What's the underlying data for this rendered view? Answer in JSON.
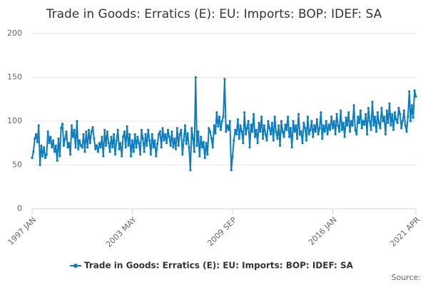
{
  "chart_data": {
    "type": "line",
    "title": "Trade in Goods: Erratics (E): EU: Imports: BOP: IDEF: SA",
    "source": "Source:",
    "categories": [
      "1997 JAN",
      null,
      null,
      null,
      null,
      null,
      null,
      null,
      null,
      null,
      null,
      null,
      null,
      null,
      null,
      null,
      null,
      null,
      null,
      null,
      null,
      null,
      null,
      null,
      null,
      null,
      null,
      null,
      null,
      null,
      null,
      null,
      null,
      null,
      null,
      null,
      null,
      null,
      null,
      null,
      null,
      null,
      null,
      null,
      null,
      null,
      null,
      null,
      null,
      null,
      null,
      null,
      null,
      null,
      null,
      null,
      null,
      null,
      null,
      null,
      null,
      null,
      null,
      null,
      null,
      null,
      null,
      null,
      null,
      null,
      null,
      null,
      null,
      null,
      null,
      null,
      "2003 MAY",
      null,
      null,
      null,
      null,
      null,
      null,
      null,
      null,
      null,
      null,
      null,
      null,
      null,
      null,
      null,
      null,
      null,
      null,
      null,
      null,
      null,
      null,
      null,
      null,
      null,
      null,
      null,
      null,
      null,
      null,
      null,
      null,
      null,
      null,
      null,
      null,
      null,
      null,
      null,
      null,
      null,
      null,
      null,
      null,
      null,
      null,
      null,
      null,
      null,
      null,
      null,
      null,
      null,
      null,
      null,
      null,
      null,
      null,
      null,
      null,
      null,
      null,
      null,
      null,
      null,
      null,
      null,
      null,
      null,
      null,
      null,
      null,
      null,
      null,
      null,
      "2009 SEP",
      null,
      null,
      null,
      null,
      null,
      null,
      null,
      null,
      null,
      null,
      null,
      null,
      null,
      null,
      null,
      null,
      null,
      null,
      null,
      null,
      null,
      null,
      null,
      null,
      null,
      null,
      null,
      null,
      null,
      null,
      null,
      null,
      null,
      null,
      null,
      null,
      null,
      null,
      null,
      null,
      null,
      null,
      null,
      null,
      null,
      null,
      null,
      null,
      null,
      null,
      null,
      null,
      null,
      null,
      null,
      null,
      null,
      null,
      null,
      null,
      null,
      null,
      null,
      null,
      null,
      null,
      null,
      null,
      null,
      null,
      null,
      null,
      null,
      null,
      null,
      "2016 JAN",
      null,
      null,
      null,
      null,
      null,
      null,
      null,
      null,
      null,
      null,
      null,
      null,
      null,
      null,
      null,
      null,
      null,
      null,
      null,
      null,
      null,
      null,
      null,
      null,
      null,
      null,
      null,
      null,
      null,
      null,
      null,
      null,
      null,
      null,
      null,
      null,
      null,
      null,
      null,
      null,
      null,
      null,
      null,
      null,
      null,
      null,
      null,
      null,
      null,
      null,
      null,
      null,
      null,
      null,
      null,
      null,
      null,
      null,
      null,
      null,
      null,
      null,
      "2021 APR"
    ],
    "series": [
      {
        "name": "Trade in Goods: Erratics (E): EU: Imports: BOP: IDEF: SA",
        "color": "#0e7dbd",
        "values": [
          58,
          65,
          80,
          85,
          76,
          95,
          50,
          72,
          60,
          70,
          58,
          62,
          88,
          75,
          82,
          70,
          78,
          65,
          72,
          55,
          80,
          60,
          92,
          97,
          72,
          80,
          88,
          70,
          75,
          62,
          95,
          82,
          90,
          70,
          100,
          68,
          78,
          72,
          70,
          85,
          65,
          88,
          70,
          90,
          75,
          88,
          93,
          80,
          68,
          72,
          65,
          75,
          70,
          82,
          60,
          90,
          72,
          88,
          75,
          65,
          82,
          70,
          85,
          62,
          78,
          90,
          68,
          75,
          60,
          82,
          88,
          70,
          94,
          72,
          85,
          60,
          78,
          65,
          85,
          70,
          82,
          75,
          62,
          90,
          80,
          65,
          85,
          72,
          90,
          78,
          62,
          85,
          70,
          78,
          60,
          74,
          85,
          88,
          70,
          92,
          78,
          85,
          75,
          90,
          82,
          72,
          88,
          70,
          80,
          68,
          92,
          72,
          85,
          90,
          62,
          78,
          95,
          74,
          86,
          70,
          44,
          92,
          80,
          65,
          150,
          72,
          88,
          60,
          82,
          70,
          76,
          58,
          75,
          62,
          92,
          88,
          80,
          70,
          95,
          86,
          110,
          94,
          105,
          90,
          100,
          105,
          148,
          88,
          95,
          90,
          100,
          44,
          60,
          78,
          90,
          85,
          102,
          80,
          95,
          88,
          75,
          110,
          85,
          92,
          100,
          70,
          96,
          88,
          108,
          82,
          90,
          75,
          98,
          88,
          105,
          80,
          95,
          85,
          78,
          100,
          92,
          85,
          98,
          78,
          105,
          88,
          80,
          95,
          72,
          100,
          88,
          82,
          96,
          90,
          105,
          82,
          92,
          70,
          100,
          88,
          95,
          80,
          108,
          85,
          88,
          75,
          98,
          92,
          78,
          105,
          85,
          90,
          100,
          82,
          95,
          88,
          102,
          85,
          92,
          110,
          80,
          95,
          88,
          100,
          85,
          96,
          90,
          105,
          92,
          100,
          85,
          108,
          95,
          88,
          112,
          90,
          98,
          82,
          104,
          95,
          110,
          88,
          100,
          95,
          118,
          90,
          85,
          105,
          98,
          112,
          92,
          100,
          96,
          108,
          85,
          115,
          100,
          90,
          122,
          95,
          105,
          88,
          110,
          98,
          92,
          115,
          100,
          105,
          85,
          112,
          98,
          120,
          95,
          108,
          90,
          110,
          102,
          98,
          115,
          108,
          92,
          100,
          112,
          95,
          88,
          105,
          134,
          100,
          118,
          104,
          135,
          128
        ]
      }
    ],
    "ylim": [
      0,
      200
    ],
    "yticks": [
      0,
      50,
      100,
      150,
      200
    ],
    "grid": true
  }
}
